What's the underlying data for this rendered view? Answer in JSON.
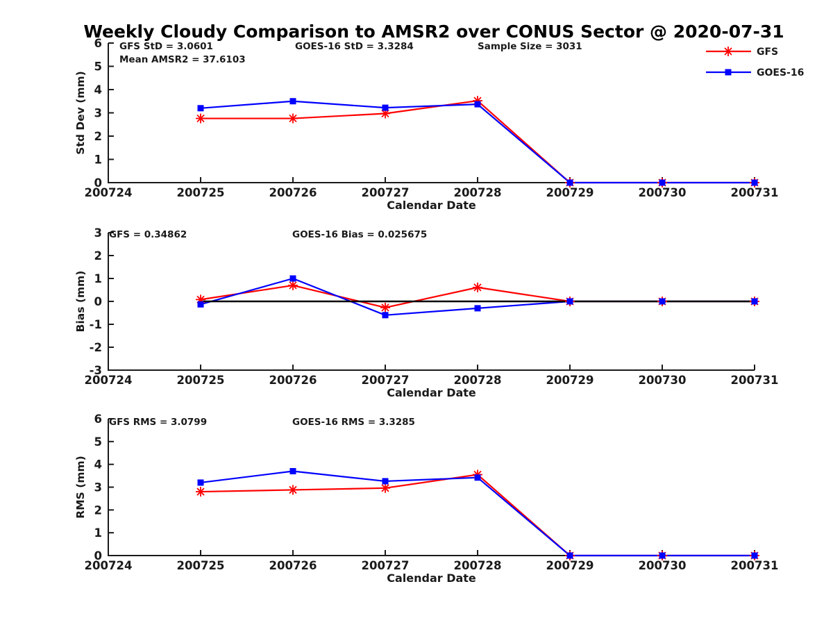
{
  "title": "Weekly Cloudy Comparison to AMSR2 over CONUS Sector @ 2020-07-31",
  "colors": {
    "gfs": "#ff0000",
    "goes16": "#0000ff",
    "axis": "#1a1a1a",
    "zero_line": "#000000",
    "background": "#ffffff",
    "title_color": "#000000"
  },
  "legend": {
    "position": "top-right",
    "entries": [
      {
        "label": "GFS",
        "color": "#ff0000",
        "marker": "asterisk"
      },
      {
        "label": "GOES-16",
        "color": "#0000ff",
        "marker": "square"
      }
    ]
  },
  "chart_data": [
    {
      "id": "stddev",
      "type": "line",
      "xlabel": "Calendar Date",
      "ylabel": "Std Dev (mm)",
      "ylim": [
        0,
        6
      ],
      "yticks": [
        0,
        1,
        2,
        3,
        4,
        5,
        6
      ],
      "xticks": [
        "200724",
        "200725",
        "200726",
        "200727",
        "200728",
        "200729",
        "200730",
        "200731"
      ],
      "x": [
        "200725",
        "200726",
        "200727",
        "200728",
        "200729",
        "200730",
        "200731"
      ],
      "grid": false,
      "legend_visible": true,
      "zero_line": false,
      "series": [
        {
          "name": "GFS",
          "color": "#ff0000",
          "marker": "asterisk",
          "values": [
            2.76,
            2.76,
            2.97,
            3.52,
            0,
            0,
            0
          ]
        },
        {
          "name": "GOES-16",
          "color": "#0000ff",
          "marker": "square",
          "values": [
            3.2,
            3.5,
            3.22,
            3.37,
            0,
            0,
            0
          ]
        }
      ],
      "annotations": [
        {
          "text": "GFS StD = 3.0601",
          "col": 0,
          "row": 0
        },
        {
          "text": "Mean AMSR2 = 37.6103",
          "col": 0,
          "row": 1
        },
        {
          "text": "GOES-16 StD = 3.3284",
          "col": 1,
          "row": 0
        },
        {
          "text": "Sample Size = 3031",
          "col": 2,
          "row": 0
        }
      ]
    },
    {
      "id": "bias",
      "type": "line",
      "xlabel": "Calendar Date",
      "ylabel": "Bias (mm)",
      "ylim": [
        -3,
        3
      ],
      "yticks": [
        -3,
        -2,
        -1,
        0,
        1,
        2,
        3
      ],
      "xticks": [
        "200724",
        "200725",
        "200726",
        "200727",
        "200728",
        "200729",
        "200730",
        "200731"
      ],
      "x": [
        "200725",
        "200726",
        "200727",
        "200728",
        "200729",
        "200730",
        "200731"
      ],
      "grid": false,
      "legend_visible": false,
      "zero_line": true,
      "series": [
        {
          "name": "GFS",
          "color": "#ff0000",
          "marker": "asterisk",
          "values": [
            0.08,
            0.7,
            -0.27,
            0.61,
            0,
            0,
            0
          ]
        },
        {
          "name": "GOES-16",
          "color": "#0000ff",
          "marker": "square",
          "values": [
            -0.13,
            1.0,
            -0.6,
            -0.3,
            0,
            0,
            0
          ]
        }
      ],
      "annotations": [
        {
          "text": "GFS = 0.34862",
          "col": 0,
          "row": 0
        },
        {
          "text": "GOES-16 Bias  = 0.025675",
          "col": 1,
          "row": 0
        }
      ]
    },
    {
      "id": "rms",
      "type": "line",
      "xlabel": "Calendar Date",
      "ylabel": "RMS (mm)",
      "ylim": [
        0,
        6
      ],
      "yticks": [
        0,
        1,
        2,
        3,
        4,
        5,
        6
      ],
      "xticks": [
        "200724",
        "200725",
        "200726",
        "200727",
        "200728",
        "200729",
        "200730",
        "200731"
      ],
      "x": [
        "200725",
        "200726",
        "200727",
        "200728",
        "200729",
        "200730",
        "200731"
      ],
      "grid": false,
      "legend_visible": false,
      "zero_line": false,
      "series": [
        {
          "name": "GFS",
          "color": "#ff0000",
          "marker": "asterisk",
          "values": [
            2.8,
            2.88,
            2.96,
            3.55,
            0,
            0,
            0
          ]
        },
        {
          "name": "GOES-16",
          "color": "#0000ff",
          "marker": "square",
          "values": [
            3.2,
            3.7,
            3.26,
            3.42,
            0,
            0,
            0
          ]
        }
      ],
      "annotations": [
        {
          "text": "GFS RMS = 3.0799",
          "col": 0,
          "row": 0
        },
        {
          "text": "GOES-16 RMS = 3.3285",
          "col": 1,
          "row": 0
        }
      ]
    }
  ]
}
